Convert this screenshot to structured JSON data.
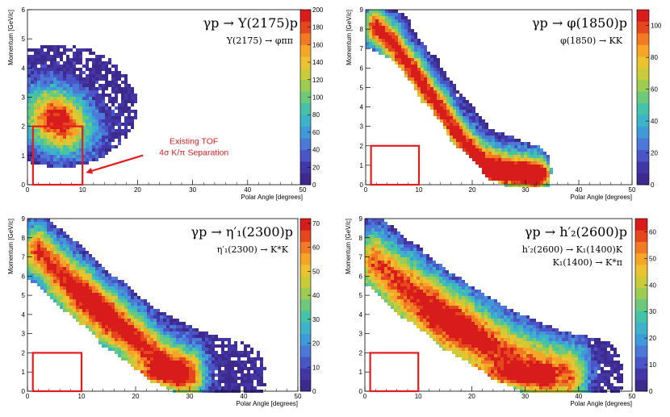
{
  "colors": {
    "cut_box": "#e21d1d",
    "annotation": "#e21d1d",
    "palette": [
      "#3d2a8c",
      "#4336a6",
      "#4a55c8",
      "#4c79d8",
      "#3f9ad8",
      "#3cb3c9",
      "#44c3a8",
      "#6cc97c",
      "#9ccc52",
      "#c9cb3a",
      "#ecc32e",
      "#f6a528",
      "#f17a22",
      "#e5461c",
      "#d81b1b"
    ]
  },
  "chart_data": [
    {
      "type": "heatmap",
      "title": "γp → Y(2175)p",
      "subtitle_lines": [
        "Y(2175) → φππ"
      ],
      "xlabel": "Polar Angle [degrees]",
      "ylabel": "Momentum [GeV/c]",
      "xlim": [
        0,
        50
      ],
      "ylim": [
        0,
        6
      ],
      "xticks": [
        0,
        10,
        20,
        30,
        40,
        50
      ],
      "yticks": [
        0,
        1,
        2,
        3,
        4,
        5,
        6
      ],
      "zlim": [
        0,
        200
      ],
      "zticks": [
        0,
        20,
        40,
        60,
        80,
        100,
        120,
        140,
        160,
        180,
        200
      ],
      "cut_box": {
        "x": [
          1,
          10
        ],
        "y": [
          0,
          2
        ]
      },
      "annotation": {
        "lines": [
          "Existing TOF",
          "4σ K/π Separation"
        ],
        "arrow_to": [
          10,
          0.4
        ]
      },
      "distribution": [
        {
          "kind": "blob",
          "cx": 5.5,
          "cy": 2.2,
          "sx": 4.2,
          "sy": 0.75,
          "tilt": -0.04,
          "amp": 1.0
        }
      ],
      "support": {
        "kind": "ellipse",
        "cx": 6,
        "cy": 2.7,
        "rx": 14,
        "ry": 2.1
      }
    },
    {
      "type": "heatmap",
      "title": "γp → φ(1850)p",
      "subtitle_lines": [
        "φ(1850) → KK"
      ],
      "xlabel": "Polar Angle [degrees]",
      "ylabel": "Momentum [GeV/c]",
      "xlim": [
        0,
        50
      ],
      "ylim": [
        0,
        9
      ],
      "xticks": [
        0,
        10,
        20,
        30,
        40,
        50
      ],
      "yticks": [
        0,
        1,
        2,
        3,
        4,
        5,
        6,
        7,
        8,
        9
      ],
      "zlim": [
        0,
        110
      ],
      "zticks": [
        0,
        20,
        40,
        60,
        80,
        100
      ],
      "cut_box": {
        "x": [
          1,
          10
        ],
        "y": [
          0,
          2
        ]
      },
      "distribution": [
        {
          "kind": "band",
          "points": [
            [
              2,
              8.1
            ],
            [
              5,
              7.3
            ],
            [
              9,
              5.8
            ],
            [
              14,
              3.9
            ],
            [
              18,
              2.3
            ],
            [
              22,
              1.2
            ],
            [
              26,
              0.8
            ],
            [
              32,
              0.6
            ]
          ],
          "width": 1.4,
          "amp": 1.0
        },
        {
          "kind": "band",
          "points": [
            [
              1,
              0.65
            ],
            [
              8,
              0.6
            ],
            [
              18,
              0.6
            ],
            [
              28,
              0.55
            ],
            [
              34,
              0.5
            ]
          ],
          "width": 0.6,
          "amp": 0.55
        }
      ],
      "support": {
        "kind": "band",
        "points": [
          [
            0.5,
            8.3
          ],
          [
            6,
            7.6
          ],
          [
            12,
            5.4
          ],
          [
            18,
            3.2
          ],
          [
            24,
            1.5
          ],
          [
            32,
            0.7
          ]
        ],
        "width": 2.6
      }
    },
    {
      "type": "heatmap",
      "title": "γp → η′₁(2300)p",
      "subtitle_lines": [
        "η′₁(2300) → K*K"
      ],
      "xlabel": "Polar Angle [degrees]",
      "ylabel": "Momentum [GeV/c]",
      "xlim": [
        0,
        50
      ],
      "ylim": [
        0,
        9
      ],
      "xticks": [
        0,
        10,
        20,
        30,
        40,
        50
      ],
      "yticks": [
        0,
        1,
        2,
        3,
        4,
        5,
        6,
        7,
        8,
        9
      ],
      "zlim": [
        0,
        72
      ],
      "zticks": [
        0,
        10,
        20,
        30,
        40,
        50,
        60,
        70
      ],
      "cut_box": {
        "x": [
          1,
          10
        ],
        "y": [
          0,
          2
        ]
      },
      "distribution": [
        {
          "kind": "band",
          "points": [
            [
              2,
              7.3
            ],
            [
              6,
              6.2
            ],
            [
              10,
              5.2
            ],
            [
              15,
              3.9
            ],
            [
              20,
              2.7
            ],
            [
              25,
              1.6
            ],
            [
              30,
              0.9
            ]
          ],
          "width": 1.9,
          "amp": 0.9
        },
        {
          "kind": "band",
          "points": [
            [
              2,
              0.9
            ],
            [
              10,
              0.85
            ],
            [
              20,
              0.8
            ],
            [
              28,
              0.8
            ]
          ],
          "width": 0.9,
          "amp": 0.45
        },
        {
          "kind": "blob",
          "cx": 8,
          "cy": 2.8,
          "sx": 7,
          "sy": 1.8,
          "tilt": 0,
          "amp": 0.35
        }
      ],
      "support": {
        "kind": "band",
        "points": [
          [
            0.5,
            7.8
          ],
          [
            8,
            6.0
          ],
          [
            16,
            4.0
          ],
          [
            24,
            2.3
          ],
          [
            32,
            1.2
          ],
          [
            40,
            0.6
          ]
        ],
        "width": 3.8
      }
    },
    {
      "type": "heatmap",
      "title": "γp → h′₂(2600)p",
      "subtitle_lines": [
        "h′₂(2600) → K₁(1400)K",
        "K₁(1400) → K*π"
      ],
      "xlabel": "Polar Angle [degrees]",
      "ylabel": "Momentum [GeV/c]",
      "xlim": [
        0,
        50
      ],
      "ylim": [
        0,
        9
      ],
      "xticks": [
        0,
        10,
        20,
        30,
        40,
        50
      ],
      "yticks": [
        0,
        1,
        2,
        3,
        4,
        5,
        6,
        7,
        8,
        9
      ],
      "zlim": [
        0,
        65
      ],
      "zticks": [
        0,
        10,
        20,
        30,
        40,
        50,
        60
      ],
      "cut_box": {
        "x": [
          1,
          10
        ],
        "y": [
          0,
          2
        ]
      },
      "distribution": [
        {
          "kind": "band",
          "points": [
            [
              2,
              6.7
            ],
            [
              7,
              5.6
            ],
            [
              12,
              4.6
            ],
            [
              17,
              3.6
            ],
            [
              22,
              2.6
            ],
            [
              27,
              1.8
            ],
            [
              32,
              1.2
            ],
            [
              38,
              0.8
            ]
          ],
          "width": 2.3,
          "amp": 0.85
        },
        {
          "kind": "band",
          "points": [
            [
              2,
              0.9
            ],
            [
              12,
              0.8
            ],
            [
              24,
              0.75
            ],
            [
              34,
              0.7
            ]
          ],
          "width": 0.8,
          "amp": 0.4
        },
        {
          "kind": "blob",
          "cx": 10,
          "cy": 2.6,
          "sx": 9,
          "sy": 1.6,
          "tilt": 0,
          "amp": 0.35
        }
      ],
      "support": {
        "kind": "band",
        "points": [
          [
            0.5,
            7.6
          ],
          [
            8,
            5.8
          ],
          [
            16,
            4.1
          ],
          [
            26,
            2.4
          ],
          [
            36,
            1.2
          ],
          [
            44,
            0.7
          ]
        ],
        "width": 4.0
      }
    }
  ]
}
